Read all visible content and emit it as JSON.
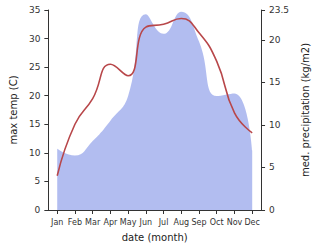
{
  "chart_data": {
    "type": "line",
    "xlabel": "date (month)",
    "ylabel": "max temp (C)",
    "y2label": "med. precipitation (kg/m2)",
    "categories": [
      "Jan",
      "Feb",
      "Mar",
      "Apr",
      "May",
      "Jun",
      "Jul",
      "Aug",
      "Sep",
      "Oct",
      "Nov",
      "Dec"
    ],
    "series": [
      {
        "type": "area",
        "axis": "y2",
        "color": "#aeb9ef",
        "values": [
          7.2,
          6.4,
          8.1,
          10.5,
          13.4,
          23.0,
          20.7,
          23.3,
          19.8,
          13.4,
          13.7,
          7.0
        ]
      },
      {
        "type": "line",
        "color": "#b8474a",
        "values": [
          6,
          15,
          19.5,
          25.5,
          23.5,
          32,
          32.5,
          33.5,
          31,
          26,
          17,
          13.5
        ]
      }
    ],
    "ylim": [
      0,
      35
    ],
    "yticks": [
      0,
      5,
      10,
      15,
      20,
      25,
      30,
      35
    ],
    "y2lim": [
      0,
      23.5
    ],
    "y2ticks": [
      0,
      5,
      10,
      15,
      20
    ],
    "grid": false
  }
}
